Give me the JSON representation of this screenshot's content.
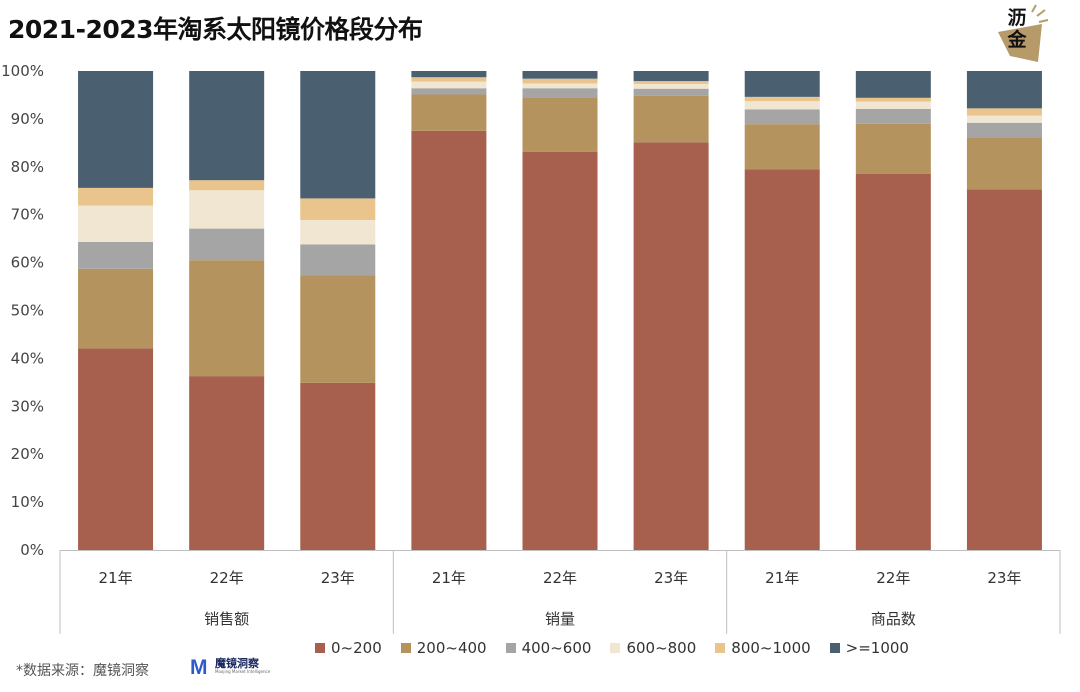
{
  "title": "2021-2023年淘系太阳镜价格段分布",
  "logo": {
    "text": "沥金"
  },
  "source": {
    "label": "*数据来源：魔镜洞察",
    "brand": "魔镜洞察",
    "brand_sub": "Moojing Market Intelligence",
    "brand_letter": "M"
  },
  "colors": {
    "0~200": "#A8604E",
    "200~400": "#B4935E",
    "400~600": "#A5A5A5",
    "600~800": "#F0E6D2",
    "800~1000": "#E9C48C",
    ">=1000": "#4A6070",
    "brand": "#2E5BC8",
    "logo_bg": "#B69A6A"
  },
  "chart_data": {
    "type": "bar",
    "stacked": true,
    "percent": true,
    "ylim": [
      0,
      100
    ],
    "yticks": [
      "0%",
      "10%",
      "20%",
      "30%",
      "40%",
      "50%",
      "60%",
      "70%",
      "80%",
      "90%",
      "100%"
    ],
    "groups": [
      "销售额",
      "销量",
      "商品数"
    ],
    "categories": [
      "21年",
      "22年",
      "23年",
      "21年",
      "22年",
      "23年",
      "21年",
      "22年",
      "23年"
    ],
    "series": [
      {
        "name": "0~200",
        "values": [
          42.1,
          36.3,
          34.9,
          87.5,
          83.1,
          85.1,
          79.5,
          78.5,
          75.3
        ]
      },
      {
        "name": "200~400",
        "values": [
          16.6,
          24.2,
          22.4,
          7.6,
          11.4,
          9.7,
          9.4,
          10.5,
          10.8
        ]
      },
      {
        "name": "400~600",
        "values": [
          5.6,
          6.6,
          6.5,
          1.3,
          1.9,
          1.5,
          3.1,
          3.1,
          3.1
        ]
      },
      {
        "name": "600~800",
        "values": [
          7.6,
          8.0,
          5.1,
          1.4,
          1.0,
          1.0,
          1.7,
          1.5,
          1.5
        ]
      },
      {
        "name": "800~1000",
        "values": [
          3.7,
          2.1,
          4.5,
          0.9,
          1.0,
          0.6,
          0.9,
          0.8,
          1.5
        ]
      },
      {
        "name": ">=1000",
        "values": [
          24.4,
          22.8,
          26.6,
          1.3,
          1.6,
          2.1,
          5.4,
          5.6,
          7.8
        ]
      }
    ]
  }
}
